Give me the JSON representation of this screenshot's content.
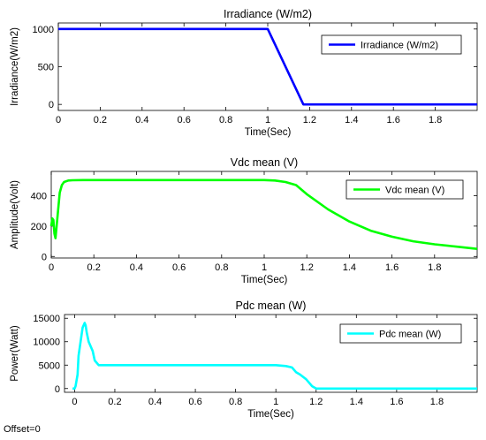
{
  "footer": {
    "offset_label": "Offset=0"
  },
  "chart_data": [
    {
      "type": "line",
      "title": "Irradiance (W/m2)",
      "xlabel": "Time(Sec)",
      "ylabel": "Irradiance(W/m2)",
      "xlim": [
        0,
        2
      ],
      "ylim": [
        -80,
        1080
      ],
      "xticks": [
        0,
        0.2,
        0.4,
        0.6,
        0.8,
        1,
        1.2,
        1.4,
        1.6,
        1.8
      ],
      "yticks": [
        0,
        500,
        1000
      ],
      "legend_position": "top-right",
      "series": [
        {
          "name": "Irradiance (W/m2)",
          "color": "#0000ff",
          "x": [
            0,
            1.0,
            1.17,
            2.0
          ],
          "y": [
            1000,
            1000,
            0,
            0
          ]
        }
      ]
    },
    {
      "type": "line",
      "title": "Vdc mean (V)",
      "xlabel": "Time(Sec)",
      "ylabel": "Amplitude(Volt)",
      "xlim": [
        0,
        2
      ],
      "ylim": [
        -10,
        560
      ],
      "xticks": [
        0,
        0.2,
        0.4,
        0.6,
        0.8,
        1,
        1.2,
        1.4,
        1.6,
        1.8
      ],
      "yticks": [
        0,
        200,
        400
      ],
      "legend_position": "top-right",
      "series": [
        {
          "name": "Vdc mean (V)",
          "color": "#00ff00",
          "x": [
            0,
            0.005,
            0.01,
            0.015,
            0.02,
            0.03,
            0.04,
            0.05,
            0.06,
            0.08,
            0.1,
            0.15,
            0.3,
            0.6,
            1.0,
            1.05,
            1.1,
            1.15,
            1.2,
            1.3,
            1.4,
            1.5,
            1.6,
            1.7,
            1.8,
            1.9,
            2.0
          ],
          "y": [
            200,
            250,
            240,
            150,
            120,
            270,
            420,
            470,
            490,
            500,
            502,
            503,
            503,
            503,
            503,
            500,
            490,
            470,
            410,
            310,
            230,
            170,
            130,
            100,
            80,
            65,
            50
          ]
        }
      ]
    },
    {
      "type": "line",
      "title": "Pdc mean (W)",
      "xlabel": "Time(Sec)",
      "ylabel": "Power(Watt)",
      "xlim": [
        -0.05,
        2
      ],
      "ylim": [
        -800,
        15800
      ],
      "xticks": [
        0,
        0.2,
        0.4,
        0.6,
        0.8,
        1,
        1.2,
        1.4,
        1.6,
        1.8
      ],
      "yticks": [
        0,
        5000,
        10000,
        15000
      ],
      "legend_position": "top-right",
      "series": [
        {
          "name": "Pdc mean (W)",
          "color": "#00ffff",
          "x": [
            -0.01,
            0.0,
            0.005,
            0.015,
            0.02,
            0.03,
            0.04,
            0.05,
            0.055,
            0.06,
            0.07,
            0.08,
            0.09,
            0.1,
            0.12,
            0.2,
            0.6,
            1.0,
            1.05,
            1.08,
            1.1,
            1.12,
            1.15,
            1.18,
            1.2,
            1.4,
            2.0
          ],
          "y": [
            0,
            0,
            500,
            3000,
            7000,
            10000,
            13000,
            14000,
            13500,
            12000,
            10000,
            9000,
            8000,
            6000,
            5000,
            5000,
            5000,
            5000,
            4800,
            4500,
            3500,
            3000,
            2000,
            500,
            0,
            0,
            0
          ]
        }
      ]
    }
  ]
}
